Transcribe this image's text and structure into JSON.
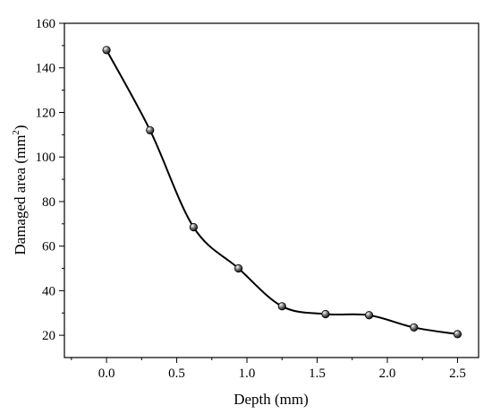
{
  "chart_data": {
    "type": "line",
    "title": "",
    "xlabel": "Depth (mm)",
    "ylabel": {
      "prefix": "Damaged area (mm",
      "sup": "2",
      "suffix": ")"
    },
    "xlim": [
      -0.3,
      2.65
    ],
    "ylim": [
      10,
      160
    ],
    "xticks": [
      0.0,
      0.5,
      1.0,
      1.5,
      2.0,
      2.5
    ],
    "xtick_labels": [
      "0.0",
      "0.5",
      "1.0",
      "1.5",
      "2.0",
      "2.5"
    ],
    "yticks": [
      20,
      40,
      60,
      80,
      100,
      120,
      140,
      160
    ],
    "ytick_labels": [
      "20",
      "40",
      "60",
      "80",
      "100",
      "120",
      "140",
      "160"
    ],
    "grid": false,
    "series": [
      {
        "marker": "circle",
        "x": [
          0.0,
          0.31,
          0.62,
          0.94,
          1.25,
          1.56,
          1.87,
          2.19,
          2.5
        ],
        "y": [
          148,
          112,
          68.5,
          50,
          33,
          29.5,
          29,
          23.5,
          20.5
        ]
      }
    ],
    "colors": {
      "line": "#000000",
      "marker_fill": "#1a1a1a",
      "marker_highlight": "#ffffff"
    }
  }
}
